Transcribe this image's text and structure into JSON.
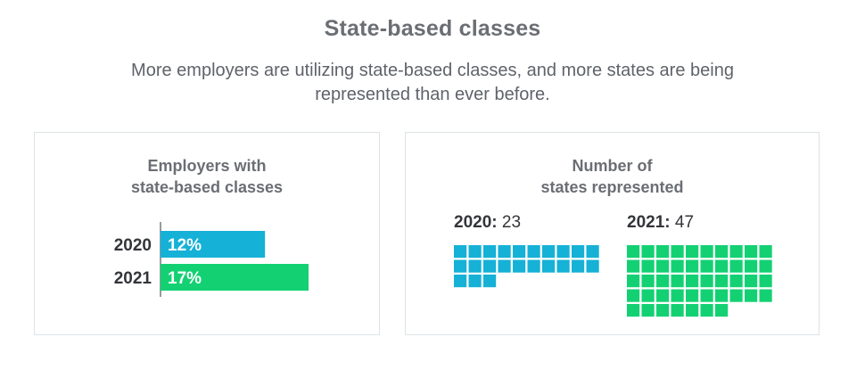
{
  "header": {
    "title": "State-based classes",
    "subtitle_line1": "More employers are utilizing state-based classes, and more states are being",
    "subtitle_line2": "represented than ever before."
  },
  "colors": {
    "blue": "#16b1d6",
    "green": "#13d173",
    "axis": "#333539"
  },
  "chart_data": [
    {
      "type": "bar",
      "orientation": "horizontal",
      "title_line1": "Employers with",
      "title_line2": "state-based classes",
      "categories": [
        "2020",
        "2021"
      ],
      "values": [
        12,
        17
      ],
      "value_labels": [
        "12%",
        "17%"
      ],
      "bar_colors": [
        "#16b1d6",
        "#13d173"
      ],
      "xlim": [
        0,
        17
      ]
    },
    {
      "type": "waffle",
      "title_line1": "Number of",
      "title_line2": "states represented",
      "series": [
        {
          "year": "2020",
          "value_text": "23",
          "value": 23,
          "color": "#16b1d6",
          "columns": 10
        },
        {
          "year": "2021",
          "value_text": "47",
          "value": 47,
          "color": "#13d173",
          "columns": 10
        }
      ]
    }
  ]
}
